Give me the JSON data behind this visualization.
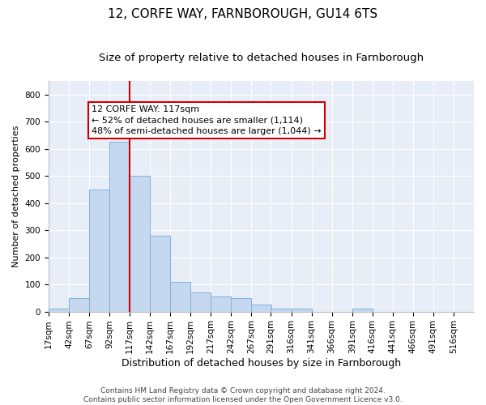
{
  "title1": "12, CORFE WAY, FARNBOROUGH, GU14 6TS",
  "title2": "Size of property relative to detached houses in Farnborough",
  "xlabel": "Distribution of detached houses by size in Farnborough",
  "ylabel": "Number of detached properties",
  "bar_color": "#c5d8f0",
  "bar_edge_color": "#7fb3d9",
  "background_color": "#e8eef8",
  "vline_color": "#cc0000",
  "vline_x": 117,
  "bin_starts": [
    17,
    42,
    67,
    92,
    117,
    142,
    167,
    192,
    217,
    242,
    267,
    291,
    316,
    341,
    366,
    391,
    416,
    441,
    466,
    491
  ],
  "bin_width": 25,
  "values": [
    10,
    50,
    450,
    625,
    500,
    280,
    110,
    70,
    55,
    50,
    25,
    10,
    10,
    0,
    0,
    10,
    0,
    0,
    0,
    0
  ],
  "ylim": [
    0,
    850
  ],
  "yticks": [
    0,
    100,
    200,
    300,
    400,
    500,
    600,
    700,
    800
  ],
  "annotation_text": "12 CORFE WAY: 117sqm\n← 52% of detached houses are smaller (1,114)\n48% of semi-detached houses are larger (1,044) →",
  "annotation_box_color": "#ffffff",
  "annotation_box_edge": "#cc0000",
  "footer1": "Contains HM Land Registry data © Crown copyright and database right 2024.",
  "footer2": "Contains public sector information licensed under the Open Government Licence v3.0.",
  "title1_fontsize": 11,
  "title2_fontsize": 9.5,
  "xlabel_fontsize": 9,
  "ylabel_fontsize": 8,
  "tick_label_fontsize": 7.5,
  "annotation_fontsize": 8,
  "footer_fontsize": 6.5
}
